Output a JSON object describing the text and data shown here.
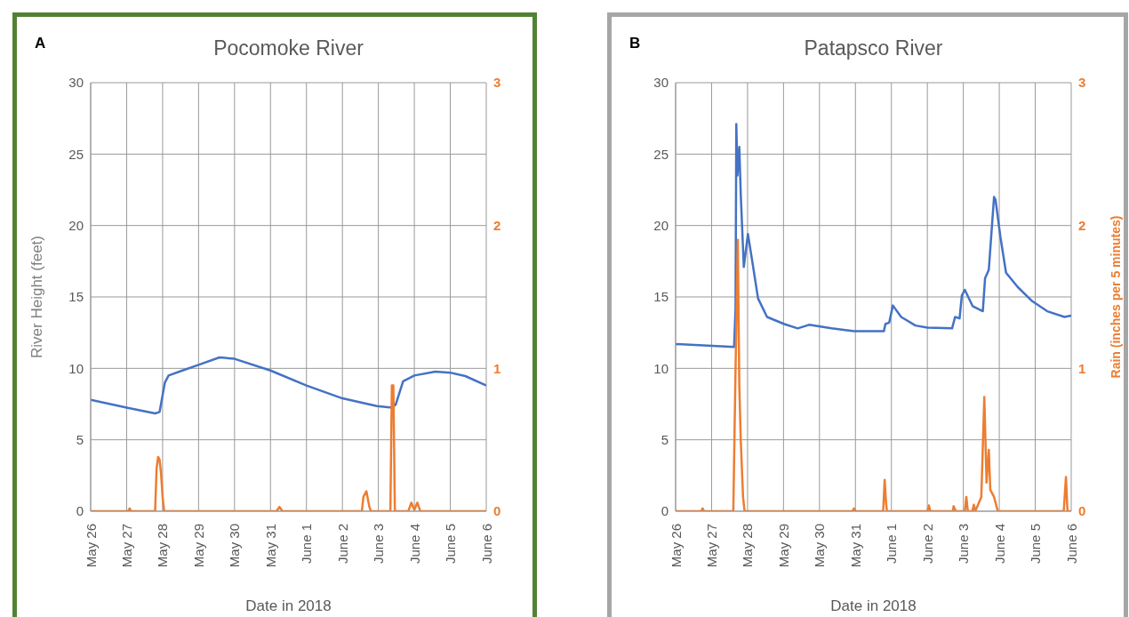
{
  "chart_data": [
    {
      "type": "line",
      "title": "Pocomoke River",
      "annotations": [
        "A"
      ],
      "xlabel": "Date in 2018",
      "ylabel": "River Height (feet)",
      "xlim": [
        "2018-05-26",
        "2018-06-06"
      ],
      "xticks": [
        {
          "value": "2018-05-26",
          "label": "May 26"
        },
        {
          "value": "2018-05-27",
          "label": "May 27"
        },
        {
          "value": "2018-05-28",
          "label": "May 28"
        },
        {
          "value": "2018-05-29",
          "label": "May 29"
        },
        {
          "value": "2018-05-30",
          "label": "May 30"
        },
        {
          "value": "2018-05-31",
          "label": "May 31"
        },
        {
          "value": "2018-06-01",
          "label": "June 1"
        },
        {
          "value": "2018-06-02",
          "label": "June 2"
        },
        {
          "value": "2018-06-03",
          "label": "June 3"
        },
        {
          "value": "2018-06-04",
          "label": "June 4"
        },
        {
          "value": "2018-06-05",
          "label": "June 5"
        },
        {
          "value": "2018-06-06",
          "label": "June 6"
        }
      ],
      "ylim": [
        0,
        30
      ],
      "yticks": [
        0,
        5,
        10,
        15,
        20,
        25,
        30
      ],
      "y2lim": [
        0,
        3
      ],
      "y2ticks": [
        0,
        1,
        2,
        3
      ],
      "grid": true,
      "series": [
        {
          "color": "#4472c4",
          "x": [
            "2018-05-26T00:00",
            "2018-05-27T00:00",
            "2018-05-27T19:00",
            "2018-05-27T22:00",
            "2018-05-28T01:30",
            "2018-05-28T04:00",
            "2018-05-28T12:00",
            "2018-05-29T00:00",
            "2018-05-29T14:00",
            "2018-05-30T00:00",
            "2018-05-31T00:00",
            "2018-06-01T00:00",
            "2018-06-02T00:00",
            "2018-06-02T23:00",
            "2018-06-03T09:00",
            "2018-06-03T11:30",
            "2018-06-03T16:30",
            "2018-06-04T00:00",
            "2018-06-04T14:00",
            "2018-06-05T00:00",
            "2018-06-05T10:00",
            "2018-06-06T00:00"
          ],
          "values": [
            7.8,
            7.25,
            6.85,
            6.95,
            9.0,
            9.5,
            9.8,
            10.25,
            10.77,
            10.67,
            9.85,
            8.8,
            7.9,
            7.36,
            7.25,
            7.45,
            9.1,
            9.5,
            9.77,
            9.7,
            9.46,
            8.8
          ]
        },
        {
          "color": "#ed7d31",
          "axis": "y2",
          "x": [
            "2018-05-26T00:00",
            "2018-05-27T01:00",
            "2018-05-27T02:00",
            "2018-05-27T03:00",
            "2018-05-27T19:00",
            "2018-05-27T20:00",
            "2018-05-27T21:00",
            "2018-05-27T22:00",
            "2018-05-27T23:00",
            "2018-05-28T00:00",
            "2018-05-28T01:00",
            "2018-05-31T04:00",
            "2018-05-31T06:00",
            "2018-05-31T08:00",
            "2018-06-02T13:00",
            "2018-06-02T14:00",
            "2018-06-02T16:00",
            "2018-06-02T18:00",
            "2018-06-02T19:00",
            "2018-06-03T08:00",
            "2018-06-03T09:00",
            "2018-06-03T10:00",
            "2018-06-03T11:00",
            "2018-06-03T20:00",
            "2018-06-03T22:00",
            "2018-06-04T00:00",
            "2018-06-04T02:00",
            "2018-06-04T04:00",
            "2018-06-06T00:00"
          ],
          "values": [
            0,
            0,
            0.02,
            0,
            0,
            0.3,
            0.38,
            0.36,
            0.26,
            0.1,
            0,
            0,
            0.03,
            0,
            0,
            0.1,
            0.14,
            0.03,
            0,
            0,
            0.88,
            0.88,
            0,
            0,
            0.06,
            0.01,
            0.06,
            0,
            0
          ]
        }
      ]
    },
    {
      "type": "line",
      "title": "Patapsco River",
      "annotations": [
        "B"
      ],
      "xlabel": "Date in 2018",
      "y2label": "Rain (inches per 5 minutes)",
      "xlim": [
        "2018-05-26",
        "2018-06-06"
      ],
      "xticks": [
        {
          "value": "2018-05-26",
          "label": "May 26"
        },
        {
          "value": "2018-05-27",
          "label": "May 27"
        },
        {
          "value": "2018-05-28",
          "label": "May 28"
        },
        {
          "value": "2018-05-29",
          "label": "May 29"
        },
        {
          "value": "2018-05-30",
          "label": "May 30"
        },
        {
          "value": "2018-05-31",
          "label": "May 31"
        },
        {
          "value": "2018-06-01",
          "label": "June 1"
        },
        {
          "value": "2018-06-02",
          "label": "June 2"
        },
        {
          "value": "2018-06-03",
          "label": "June 3"
        },
        {
          "value": "2018-06-04",
          "label": "June 4"
        },
        {
          "value": "2018-06-05",
          "label": "June 5"
        },
        {
          "value": "2018-06-06",
          "label": "June 6"
        }
      ],
      "ylim": [
        0,
        30
      ],
      "yticks": [
        0,
        5,
        10,
        15,
        20,
        25,
        30
      ],
      "y2lim": [
        0,
        3
      ],
      "y2ticks": [
        0,
        1,
        2,
        3
      ],
      "grid": true,
      "series": [
        {
          "color": "#4472c4",
          "x": [
            "2018-05-26T00:00",
            "2018-05-27T15:00",
            "2018-05-27T16:00",
            "2018-05-27T16:30",
            "2018-05-27T17:15",
            "2018-05-27T18:30",
            "2018-05-27T19:30",
            "2018-05-27T21:30",
            "2018-05-28T00:15",
            "2018-05-28T03:00",
            "2018-05-28T07:00",
            "2018-05-28T13:00",
            "2018-05-29T00:30",
            "2018-05-29T09:30",
            "2018-05-29T17:00",
            "2018-05-30T08:00",
            "2018-05-30T23:00",
            "2018-05-31T19:00",
            "2018-05-31T20:00",
            "2018-05-31T22:30",
            "2018-06-01T01:00",
            "2018-06-01T06:30",
            "2018-06-01T16:00",
            "2018-06-02T00:00",
            "2018-06-02T16:30",
            "2018-06-02T18:30",
            "2018-06-02T21:30",
            "2018-06-02T23:00",
            "2018-06-03T01:00",
            "2018-06-03T06:15",
            "2018-06-03T13:00",
            "2018-06-03T14:30",
            "2018-06-03T17:00",
            "2018-06-03T20:30",
            "2018-06-03T21:30",
            "2018-06-04T00:45",
            "2018-06-04T04:30",
            "2018-06-04T12:15",
            "2018-06-04T22:00",
            "2018-06-05T08:00",
            "2018-06-05T19:30",
            "2018-06-06T00:00"
          ],
          "values": [
            11.7,
            11.5,
            14.2,
            27.1,
            23.5,
            25.5,
            22.1,
            17.1,
            19.4,
            17.6,
            14.9,
            13.6,
            13.1,
            12.8,
            13.05,
            12.8,
            12.6,
            12.6,
            13.1,
            13.2,
            14.4,
            13.6,
            13.0,
            12.85,
            12.8,
            13.6,
            13.5,
            15.1,
            15.5,
            14.35,
            14.0,
            16.3,
            16.9,
            22.0,
            21.8,
            19.2,
            16.7,
            15.7,
            14.7,
            14.0,
            13.6,
            13.7
          ]
        },
        {
          "color": "#ed7d31",
          "axis": "y2",
          "x": [
            "2018-05-26T00:00",
            "2018-05-26T17:00",
            "2018-05-26T18:00",
            "2018-05-26T19:00",
            "2018-05-27T14:30",
            "2018-05-27T16:00",
            "2018-05-27T17:30",
            "2018-05-27T18:30",
            "2018-05-27T19:30",
            "2018-05-27T21:00",
            "2018-05-27T22:00",
            "2018-05-30T22:00",
            "2018-05-30T23:00",
            "2018-05-31T00:00",
            "2018-05-31T18:30",
            "2018-05-31T19:30",
            "2018-05-31T20:30",
            "2018-05-31T21:00",
            "2018-06-02T00:00",
            "2018-06-02T01:00",
            "2018-06-02T02:00",
            "2018-06-02T17:00",
            "2018-06-02T17:30",
            "2018-06-02T19:00",
            "2018-06-03T01:00",
            "2018-06-03T02:00",
            "2018-06-03T03:00",
            "2018-06-03T06:00",
            "2018-06-03T07:00",
            "2018-06-03T08:00",
            "2018-06-03T12:00",
            "2018-06-03T14:00",
            "2018-06-03T15:30",
            "2018-06-03T17:00",
            "2018-06-03T18:00",
            "2018-06-03T20:30",
            "2018-06-03T23:00",
            "2018-06-05T19:00",
            "2018-06-05T20:30",
            "2018-06-05T21:30",
            "2018-06-06T00:00"
          ],
          "values": [
            0,
            0,
            0.02,
            0,
            0,
            1.0,
            1.9,
            0.88,
            0.49,
            0.1,
            0,
            0,
            0.02,
            0,
            0,
            0.22,
            0.05,
            0,
            0,
            0.04,
            0,
            0,
            0.035,
            0,
            0,
            0.1,
            0,
            0,
            0.045,
            0,
            0.1,
            0.8,
            0.2,
            0.43,
            0.15,
            0.1,
            0,
            0,
            0.24,
            0,
            0
          ]
        }
      ]
    }
  ]
}
